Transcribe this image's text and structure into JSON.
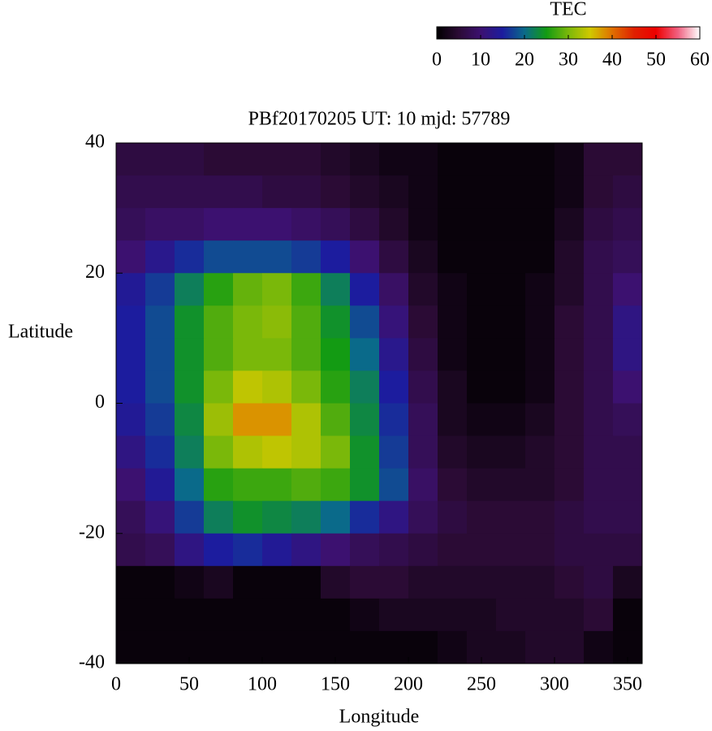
{
  "chart_data": {
    "type": "heatmap",
    "title": "PBf20170205  UT: 10  mjd: 57789",
    "x_label": "Longitude",
    "y_label": "Latitude",
    "colorbar_label": "TEC",
    "xlim": [
      0,
      360
    ],
    "xticks": [
      0,
      50,
      100,
      150,
      200,
      250,
      300,
      350
    ],
    "ylim": [
      -40,
      40
    ],
    "yticks": [
      -40,
      -20,
      0,
      20,
      40
    ],
    "zlim": [
      0,
      60
    ],
    "zticks": [
      0,
      10,
      20,
      30,
      40,
      50,
      60
    ],
    "colormap": [
      "#000000",
      "#2b0b35",
      "#3c1170",
      "#1c1c9e",
      "#0a6a8a",
      "#139b13",
      "#7ab80a",
      "#d0c800",
      "#e07000",
      "#e02000",
      "#ee0000",
      "#f06080",
      "#ffffff"
    ],
    "x": [
      10,
      30,
      50,
      70,
      90,
      110,
      130,
      150,
      170,
      190,
      210,
      230,
      250,
      270,
      290,
      310,
      330,
      350
    ],
    "y": [
      37.5,
      32.5,
      27.5,
      22.5,
      17.5,
      12.5,
      7.5,
      2.5,
      -2.5,
      -7.5,
      -12.5,
      -17.5,
      -22.5,
      -27.5,
      -32.5,
      -37.5
    ],
    "z": [
      [
        6,
        6,
        6,
        5,
        5,
        5,
        5,
        4,
        3,
        2,
        2,
        1,
        1,
        1,
        1,
        2,
        5,
        5
      ],
      [
        7,
        7,
        7,
        7,
        7,
        6,
        6,
        5,
        4,
        3,
        2,
        1,
        1,
        1,
        1,
        2,
        5,
        6
      ],
      [
        8,
        9,
        9,
        10,
        10,
        10,
        9,
        8,
        6,
        4,
        2,
        1,
        1,
        1,
        1,
        3,
        6,
        7
      ],
      [
        10,
        13,
        16,
        18,
        18,
        18,
        17,
        15,
        10,
        6,
        3,
        1,
        1,
        1,
        1,
        4,
        7,
        8
      ],
      [
        14,
        17,
        22,
        26,
        29,
        30,
        27,
        22,
        15,
        9,
        4,
        2,
        1,
        1,
        2,
        4,
        7,
        10
      ],
      [
        15,
        18,
        24,
        28,
        30,
        31,
        28,
        24,
        18,
        11,
        5,
        2,
        1,
        1,
        2,
        5,
        7,
        12
      ],
      [
        15,
        18,
        24,
        28,
        30,
        30,
        28,
        25,
        20,
        13,
        6,
        2,
        1,
        1,
        2,
        5,
        7,
        12
      ],
      [
        15,
        18,
        24,
        30,
        34,
        33,
        30,
        26,
        22,
        15,
        7,
        3,
        1,
        1,
        2,
        5,
        7,
        10
      ],
      [
        14,
        17,
        23,
        32,
        38,
        38,
        33,
        28,
        23,
        16,
        8,
        3,
        2,
        2,
        3,
        5,
        7,
        8
      ],
      [
        12,
        16,
        22,
        30,
        33,
        34,
        33,
        30,
        24,
        17,
        8,
        4,
        3,
        3,
        4,
        5,
        7,
        7
      ],
      [
        10,
        14,
        20,
        26,
        27,
        27,
        28,
        27,
        24,
        18,
        9,
        5,
        4,
        4,
        4,
        5,
        7,
        7
      ],
      [
        8,
        11,
        17,
        22,
        24,
        23,
        22,
        20,
        16,
        12,
        8,
        6,
        5,
        5,
        5,
        6,
        7,
        7
      ],
      [
        7,
        8,
        12,
        15,
        16,
        14,
        12,
        10,
        8,
        7,
        6,
        5,
        5,
        5,
        5,
        6,
        6,
        6
      ],
      [
        1,
        1,
        2,
        3,
        1,
        1,
        1,
        4,
        5,
        5,
        4,
        4,
        4,
        4,
        4,
        5,
        6,
        3
      ],
      [
        1,
        1,
        1,
        1,
        1,
        1,
        1,
        1,
        2,
        3,
        3,
        3,
        3,
        4,
        4,
        4,
        5,
        1
      ],
      [
        1,
        1,
        1,
        1,
        1,
        1,
        1,
        1,
        1,
        1,
        1,
        2,
        3,
        3,
        4,
        4,
        2,
        1
      ]
    ]
  }
}
